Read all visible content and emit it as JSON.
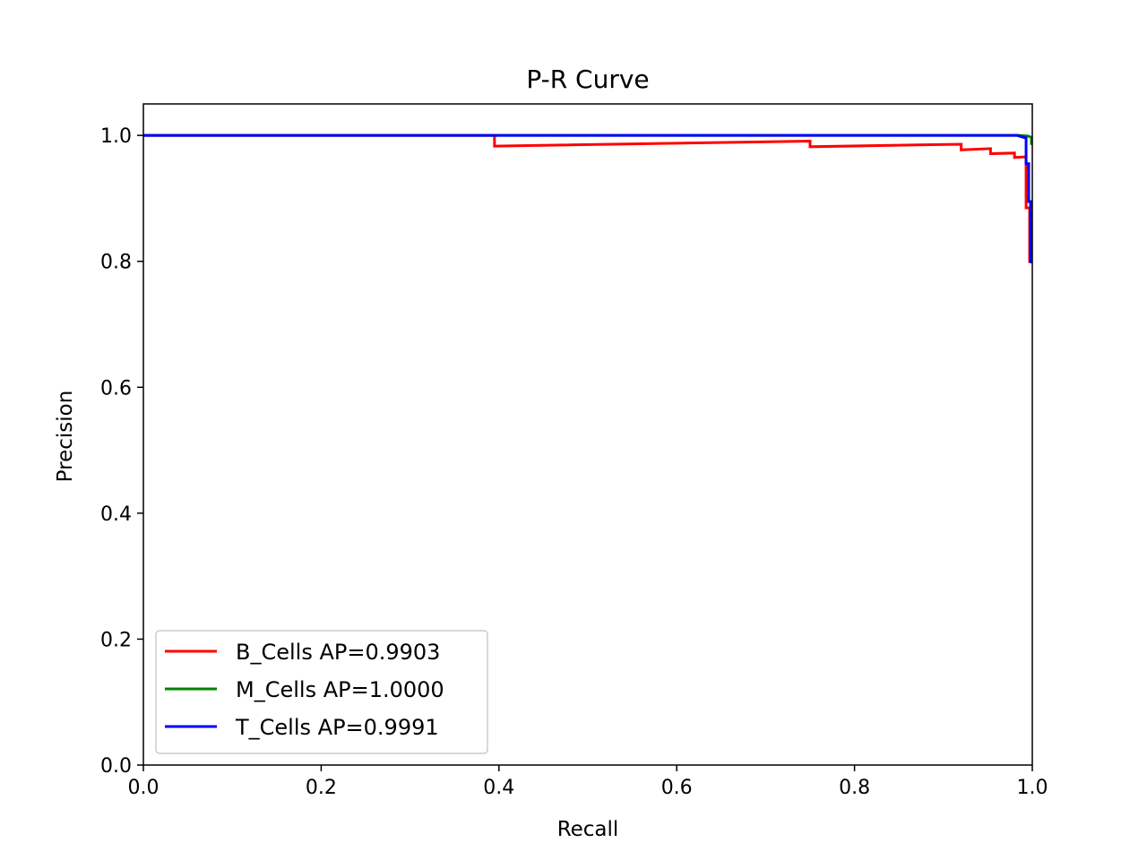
{
  "chart_data": {
    "type": "line",
    "title": "P-R Curve",
    "xlabel": "Recall",
    "ylabel": "Precision",
    "xlim": [
      0.0,
      1.0
    ],
    "ylim": [
      0.0,
      1.05
    ],
    "xticks": [
      "0.0",
      "0.2",
      "0.4",
      "0.6",
      "0.8",
      "1.0"
    ],
    "yticks": [
      "0.0",
      "0.2",
      "0.4",
      "0.6",
      "0.8",
      "1.0"
    ],
    "grid": false,
    "legend_position": "lower-left",
    "series": [
      {
        "name": "B_Cells AP=0.9903",
        "color": "#ff0000",
        "x": [
          0.0,
          0.395,
          0.395,
          0.75,
          0.75,
          0.92,
          0.92,
          0.953,
          0.953,
          0.98,
          0.98,
          0.993,
          0.993,
          0.997,
          0.997,
          1.0
        ],
        "y": [
          1.0,
          1.0,
          0.983,
          0.991,
          0.982,
          0.986,
          0.977,
          0.979,
          0.971,
          0.972,
          0.965,
          0.966,
          0.885,
          0.885,
          0.8,
          0.8
        ]
      },
      {
        "name": "M_Cells AP=1.0000",
        "color": "#008000",
        "x": [
          0.0,
          0.985,
          0.995,
          0.999,
          0.999
        ],
        "y": [
          1.0,
          1.0,
          0.999,
          0.997,
          0.985
        ]
      },
      {
        "name": "T_Cells AP=0.9991",
        "color": "#0000ff",
        "x": [
          0.0,
          0.983,
          0.99,
          0.993,
          0.993,
          0.996,
          0.996,
          0.998,
          0.998
        ],
        "y": [
          1.0,
          1.0,
          0.997,
          0.996,
          0.955,
          0.955,
          0.895,
          0.895,
          0.797
        ]
      }
    ]
  }
}
